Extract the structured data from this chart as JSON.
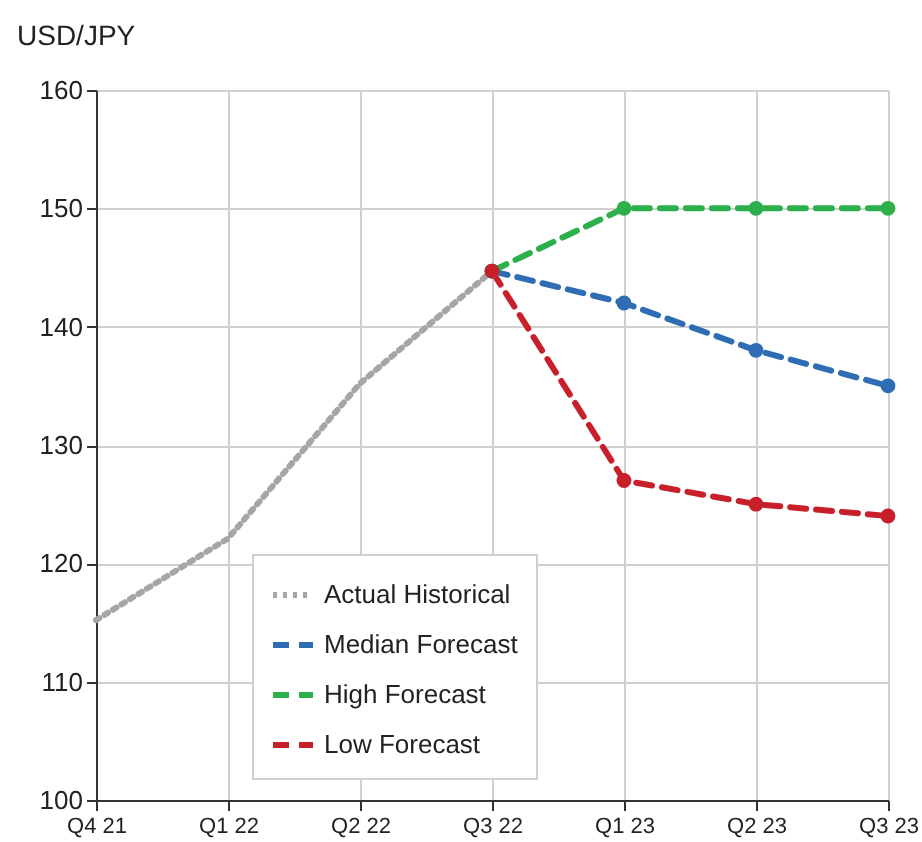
{
  "chart_data": {
    "type": "line",
    "ylabel": "USD/JPY",
    "categories": [
      "Q4 21",
      "Q1 22",
      "Q2 22",
      "Q3 22",
      "Q1 23",
      "Q2 23",
      "Q3 23"
    ],
    "series": [
      {
        "name": "Actual Historical",
        "color": "#a6a6a6",
        "line_style": "dotted",
        "marker": "none",
        "values": [
          115.2,
          122.1,
          135.2,
          144.7,
          null,
          null,
          null
        ]
      },
      {
        "name": "Median Forecast",
        "color": "#2e6db4",
        "line_style": "dashed",
        "marker": "circle",
        "values": [
          null,
          null,
          null,
          144.7,
          142,
          138,
          135
        ]
      },
      {
        "name": "High Forecast",
        "color": "#2db04b",
        "line_style": "dashed",
        "marker": "circle",
        "values": [
          null,
          null,
          null,
          144.7,
          150,
          150,
          150
        ]
      },
      {
        "name": "Low Forecast",
        "color": "#c8202a",
        "line_style": "dashed",
        "marker": "circle",
        "values": [
          null,
          null,
          null,
          144.7,
          127,
          125,
          124
        ]
      }
    ],
    "ylim": [
      100,
      160
    ],
    "yticks": [
      100,
      110,
      120,
      130,
      140,
      150,
      160
    ],
    "grid": true,
    "legend": "bottom"
  }
}
